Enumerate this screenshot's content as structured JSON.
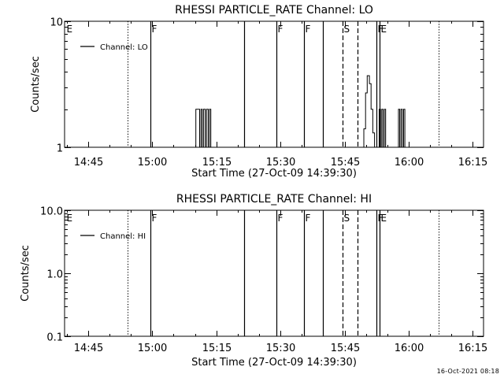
{
  "footer": {
    "date": "16-Oct-2021 08:18"
  },
  "chart_data": [
    {
      "type": "line",
      "title": "RHESSI PARTICLE_RATE Channel: LO",
      "xlabel": "Start Time (27-Oct-09 14:39:30)",
      "ylabel": "Counts/sec",
      "y_scale": "log",
      "ylim": [
        1,
        10
      ],
      "y_ticks": [
        {
          "value": 1,
          "label": "1"
        },
        {
          "value": 10,
          "label": "10"
        }
      ],
      "x_range_min": [
        0,
        98
      ],
      "x_ticks": [
        {
          "min": 5.5,
          "label": "14:45"
        },
        {
          "min": 20.5,
          "label": "15:00"
        },
        {
          "min": 35.5,
          "label": "15:15"
        },
        {
          "min": 50.5,
          "label": "15:30"
        },
        {
          "min": 65.5,
          "label": "15:45"
        },
        {
          "min": 80.5,
          "label": "16:00"
        },
        {
          "min": 95.5,
          "label": "16:15"
        }
      ],
      "legend": {
        "label": "Channel: LO",
        "position": "top-left"
      },
      "markers": [
        {
          "min": 0.2,
          "label": "E",
          "style": "none"
        },
        {
          "min": 14.8,
          "label": "",
          "style": "dotted"
        },
        {
          "min": 20.0,
          "label": "F",
          "style": "solid"
        },
        {
          "min": 42.0,
          "label": "",
          "style": "solid"
        },
        {
          "min": 49.5,
          "label": "F",
          "style": "solid"
        },
        {
          "min": 56.0,
          "label": "F",
          "style": "solid"
        },
        {
          "min": 60.5,
          "label": "",
          "style": "solid"
        },
        {
          "min": 65.0,
          "label": "S",
          "style": "dashed"
        },
        {
          "min": 68.5,
          "label": "",
          "style": "dashed"
        },
        {
          "min": 73.0,
          "label": "F",
          "style": "solid"
        },
        {
          "min": 73.6,
          "label": "E",
          "style": "solid"
        },
        {
          "min": 87.5,
          "label": "",
          "style": "dotted"
        }
      ],
      "series": [
        {
          "points": [
            [
              30.3,
              1
            ],
            [
              30.7,
              2
            ],
            [
              31.3,
              2
            ],
            [
              31.6,
              1
            ],
            [
              31.9,
              2
            ],
            [
              32.2,
              1
            ],
            [
              32.5,
              2
            ],
            [
              32.9,
              1
            ],
            [
              33.2,
              2
            ],
            [
              33.6,
              1
            ],
            [
              33.9,
              2
            ],
            [
              34.2,
              1
            ],
            [
              69.5,
              1
            ],
            [
              70.0,
              1.4
            ],
            [
              70.4,
              2.7
            ],
            [
              70.8,
              3.7
            ],
            [
              71.3,
              3.2
            ],
            [
              71.7,
              2.0
            ],
            [
              72.1,
              1.3
            ],
            [
              72.5,
              1
            ],
            [
              73.3,
              1
            ],
            [
              73.6,
              2
            ],
            [
              73.9,
              1
            ],
            [
              74.2,
              2
            ],
            [
              74.5,
              1
            ],
            [
              74.8,
              2
            ],
            [
              75.1,
              1
            ],
            [
              77.8,
              1
            ],
            [
              78.1,
              2
            ],
            [
              78.4,
              1
            ],
            [
              78.7,
              2
            ],
            [
              79.0,
              1
            ],
            [
              79.3,
              2
            ],
            [
              79.6,
              1
            ]
          ]
        }
      ]
    },
    {
      "type": "line",
      "title": "RHESSI PARTICLE_RATE Channel: HI",
      "xlabel": "Start Time (27-Oct-09 14:39:30)",
      "ylabel": "Counts/sec",
      "y_scale": "log",
      "ylim": [
        0.1,
        10
      ],
      "y_ticks": [
        {
          "value": 0.1,
          "label": "0.1"
        },
        {
          "value": 1,
          "label": "1.0"
        },
        {
          "value": 10,
          "label": "10.0"
        }
      ],
      "x_range_min": [
        0,
        98
      ],
      "x_ticks": [
        {
          "min": 5.5,
          "label": "14:45"
        },
        {
          "min": 20.5,
          "label": "15:00"
        },
        {
          "min": 35.5,
          "label": "15:15"
        },
        {
          "min": 50.5,
          "label": "15:30"
        },
        {
          "min": 65.5,
          "label": "15:45"
        },
        {
          "min": 80.5,
          "label": "16:00"
        },
        {
          "min": 95.5,
          "label": "16:15"
        }
      ],
      "legend": {
        "label": "Channel: HI",
        "position": "top-left"
      },
      "markers": [
        {
          "min": 0.2,
          "label": "E",
          "style": "none"
        },
        {
          "min": 14.8,
          "label": "",
          "style": "dotted"
        },
        {
          "min": 20.0,
          "label": "F",
          "style": "solid"
        },
        {
          "min": 42.0,
          "label": "",
          "style": "solid"
        },
        {
          "min": 49.5,
          "label": "F",
          "style": "solid"
        },
        {
          "min": 56.0,
          "label": "F",
          "style": "solid"
        },
        {
          "min": 60.5,
          "label": "",
          "style": "solid"
        },
        {
          "min": 65.0,
          "label": "S",
          "style": "dashed"
        },
        {
          "min": 68.5,
          "label": "",
          "style": "dashed"
        },
        {
          "min": 73.0,
          "label": "F",
          "style": "solid"
        },
        {
          "min": 73.6,
          "label": "E",
          "style": "solid"
        },
        {
          "min": 87.5,
          "label": "",
          "style": "dotted"
        }
      ],
      "series": [
        {
          "points": []
        }
      ]
    }
  ]
}
